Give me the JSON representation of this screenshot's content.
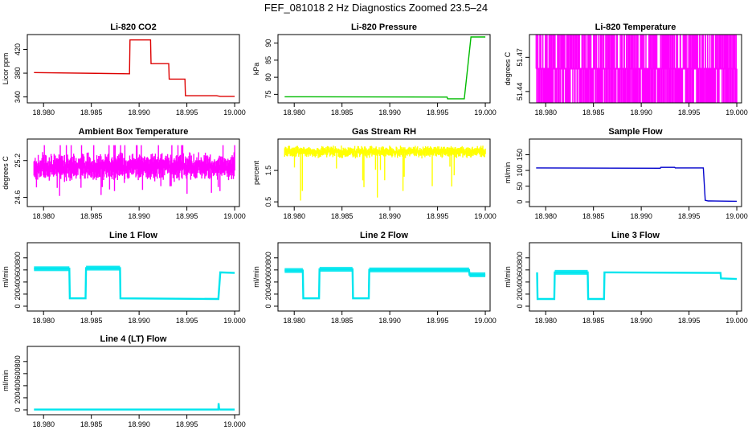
{
  "page": {
    "title": "FEF_081018  2 Hz Diagnostics Zoomed 23.5–24"
  },
  "colors": {
    "red": "#dd0000",
    "green": "#00bb00",
    "magenta": "#ff00ff",
    "yellow": "#ffff00",
    "blue": "#0000cc",
    "cyan": "#00e5ee"
  },
  "chart_data": [
    {
      "type": "line",
      "title": "Li-820 CO2",
      "xlabel": "",
      "ylabel": "Licor ppm",
      "xticks": [
        "18.980",
        "18.985",
        "18.990",
        "18.995",
        "19.000"
      ],
      "yticks": [
        "340",
        "380",
        "420"
      ],
      "ylim": [
        330,
        445
      ],
      "xlim": [
        18.9783,
        19.0005
      ],
      "color": "red",
      "series": [
        {
          "x": [
            18.979,
            18.989,
            18.98905,
            18.9912,
            18.99125,
            18.9931,
            18.99315,
            18.9948,
            18.99485,
            18.9981,
            18.9985,
            19.0
          ],
          "y": [
            381,
            379,
            436,
            436,
            396,
            396,
            370,
            370,
            342,
            342,
            341,
            341
          ]
        }
      ]
    },
    {
      "type": "line",
      "title": "Li-820 Pressure",
      "xlabel": "",
      "ylabel": "kPa",
      "xticks": [
        "18.980",
        "18.985",
        "18.990",
        "18.995",
        "19.000"
      ],
      "yticks": [
        "75",
        "80",
        "85",
        "90"
      ],
      "ylim": [
        72.5,
        92.5
      ],
      "xlim": [
        18.9783,
        19.0005
      ],
      "color": "green",
      "series": [
        {
          "x": [
            18.979,
            18.996,
            18.99605,
            18.9978,
            18.9985,
            19.0
          ],
          "y": [
            74.3,
            74.2,
            73.7,
            73.7,
            91.8,
            91.8
          ]
        }
      ]
    },
    {
      "type": "line",
      "title": "Li-820 Temperature",
      "xlabel": "",
      "ylabel": "degrees C",
      "xticks": [
        "18.980",
        "18.985",
        "18.990",
        "18.995",
        "19.000"
      ],
      "yticks": [
        "51.44",
        "51.47"
      ],
      "ylim": [
        51.43,
        51.49
      ],
      "xlim": [
        18.9783,
        19.0005
      ],
      "color": "magenta",
      "levels": [
        51.43,
        51.46,
        51.49
      ],
      "series": [
        {
          "x": [
            18.979,
            19.0
          ],
          "y": [
            51.46,
            51.46
          ]
        }
      ]
    },
    {
      "type": "line",
      "title": "Ambient Box Temperature",
      "xlabel": "",
      "ylabel": "degrees C",
      "xticks": [
        "18.980",
        "18.985",
        "18.990",
        "18.995",
        "19.000"
      ],
      "yticks": [
        "24.6",
        "25.2"
      ],
      "ylim": [
        24.45,
        25.55
      ],
      "xlim": [
        18.9783,
        19.0005
      ],
      "color": "magenta",
      "series": [
        {
          "x": [
            18.979,
            19.0
          ],
          "y": [
            25.1,
            25.1
          ]
        }
      ]
    },
    {
      "type": "line",
      "title": "Gas Stream RH",
      "xlabel": "",
      "ylabel": "percent",
      "xticks": [
        "18.980",
        "18.985",
        "18.990",
        "18.995",
        "19.000"
      ],
      "yticks": [
        "0.5",
        "1.5"
      ],
      "ylim": [
        0.35,
        2.5
      ],
      "xlim": [
        18.9783,
        19.0005
      ],
      "color": "yellow",
      "series": [
        {
          "x": [
            18.979,
            19.0
          ],
          "y": [
            2.1,
            2.1
          ]
        }
      ]
    },
    {
      "type": "line",
      "title": "Sample Flow",
      "xlabel": "",
      "ylabel": "ml/min",
      "xticks": [
        "18.980",
        "18.985",
        "18.990",
        "18.995",
        "19.000"
      ],
      "yticks": [
        "0",
        "50",
        "100",
        "150"
      ],
      "ylim": [
        -15,
        200
      ],
      "xlim": [
        18.9783,
        19.0005
      ],
      "color": "blue",
      "series": [
        {
          "x": [
            18.979,
            18.992,
            18.99205,
            18.9935,
            18.99355,
            18.9965,
            18.9967,
            18.997,
            19.0
          ],
          "y": [
            108,
            107,
            110,
            110,
            108,
            108,
            5,
            3,
            2
          ]
        }
      ]
    },
    {
      "type": "line",
      "title": "Line 1 Flow",
      "xlabel": "",
      "ylabel": "ml/min",
      "xticks": [
        "18.980",
        "18.985",
        "18.990",
        "18.995",
        "19.000"
      ],
      "yticks": [
        "0",
        "200",
        "400",
        "600",
        "800"
      ],
      "ylim": [
        -80,
        1050
      ],
      "xlim": [
        18.9783,
        19.0005
      ],
      "color": "cyan",
      "series": [
        {
          "x": [
            18.979,
            18.9827,
            18.98275,
            18.9844,
            18.98445,
            18.988,
            18.98805,
            18.9983,
            18.9985,
            19.0
          ],
          "y": [
            620,
            620,
            130,
            130,
            630,
            630,
            130,
            120,
            560,
            550
          ]
        }
      ]
    },
    {
      "type": "line",
      "title": "Line 2 Flow",
      "xlabel": "",
      "ylabel": "ml/min",
      "xticks": [
        "18.980",
        "18.985",
        "18.990",
        "18.995",
        "19.000"
      ],
      "yticks": [
        "0",
        "200",
        "400",
        "600",
        "800"
      ],
      "ylim": [
        -80,
        1050
      ],
      "xlim": [
        18.9783,
        19.0005
      ],
      "color": "cyan",
      "series": [
        {
          "x": [
            18.979,
            18.9809,
            18.98095,
            18.9826,
            18.98265,
            18.9861,
            18.98615,
            18.9878,
            18.98785,
            18.9983,
            18.99835,
            19.0
          ],
          "y": [
            590,
            590,
            130,
            130,
            610,
            610,
            130,
            130,
            600,
            600,
            520,
            520
          ]
        }
      ]
    },
    {
      "type": "line",
      "title": "Line 3 Flow",
      "xlabel": "",
      "ylabel": "ml/min",
      "xticks": [
        "18.980",
        "18.985",
        "18.990",
        "18.995",
        "19.000"
      ],
      "yticks": [
        "0",
        "200",
        "400",
        "600",
        "800"
      ],
      "ylim": [
        -80,
        1050
      ],
      "xlim": [
        18.9783,
        19.0005
      ],
      "color": "cyan",
      "series": [
        {
          "x": [
            18.9791,
            18.97915,
            18.9809,
            18.98095,
            18.9844,
            18.98445,
            18.9861,
            18.98615,
            18.9983,
            18.99835,
            19.0
          ],
          "y": [
            560,
            120,
            120,
            560,
            560,
            120,
            120,
            560,
            550,
            460,
            450
          ]
        }
      ]
    },
    {
      "type": "line",
      "title": "Line 4 (LT) Flow",
      "xlabel": "",
      "ylabel": "ml/min",
      "xticks": [
        "18.980",
        "18.985",
        "18.990",
        "18.995",
        "19.000"
      ],
      "yticks": [
        "0",
        "200",
        "400",
        "600",
        "800"
      ],
      "ylim": [
        -80,
        1050
      ],
      "xlim": [
        18.9783,
        19.0005
      ],
      "color": "cyan",
      "series": [
        {
          "x": [
            18.979,
            18.9983,
            18.99832,
            18.99838,
            18.9985,
            19.0
          ],
          "y": [
            5,
            5,
            110,
            10,
            5,
            5
          ]
        }
      ]
    }
  ]
}
